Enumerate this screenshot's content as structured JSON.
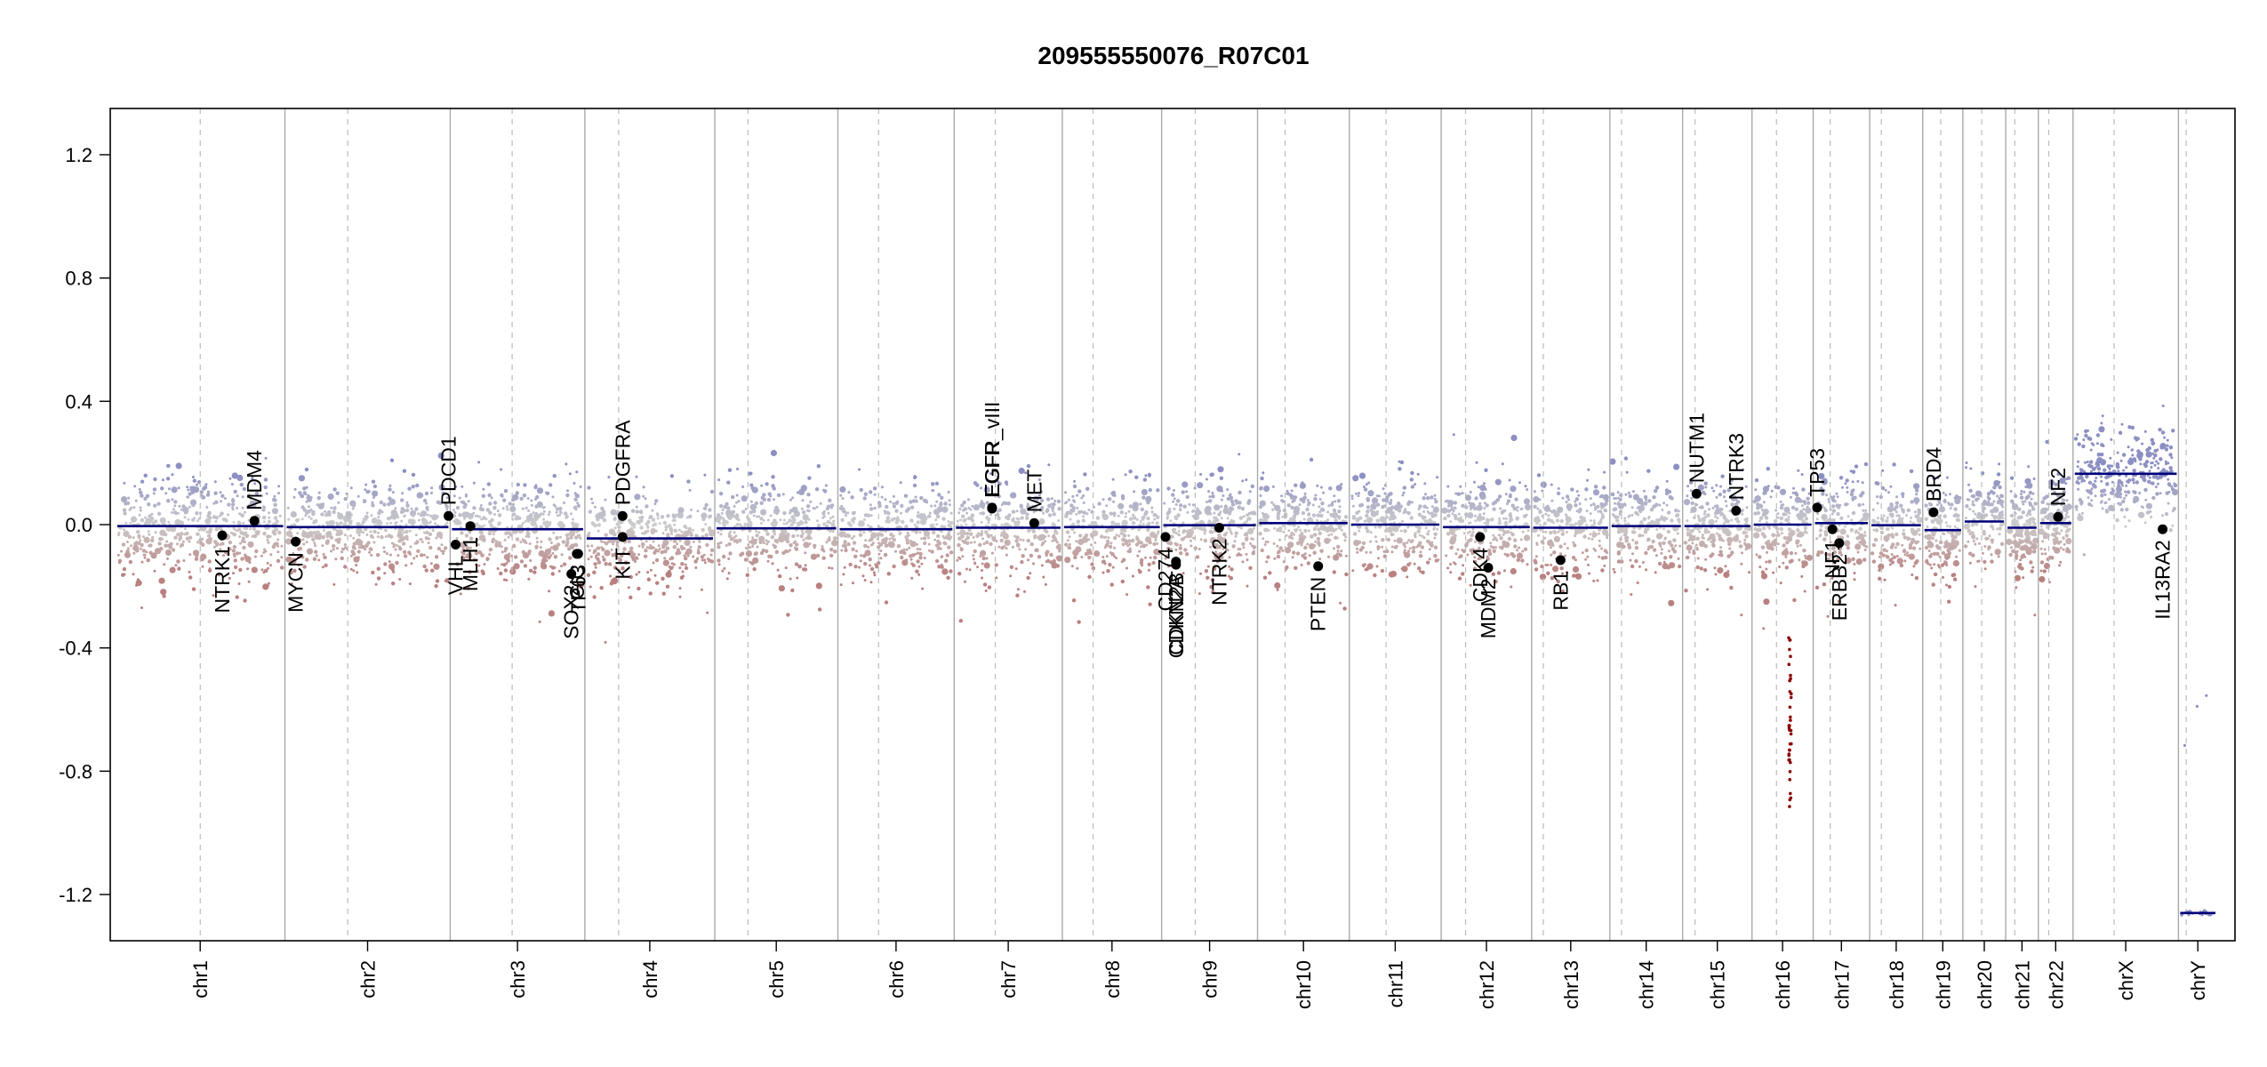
{
  "chart_data": {
    "type": "scatter",
    "title": "209555550076_R07C01",
    "xlabel": "",
    "ylabel": "",
    "ylim": [
      -1.35,
      1.35
    ],
    "yticks": [
      -1.2,
      -0.8,
      -0.4,
      0.0,
      0.4,
      0.8,
      1.2
    ],
    "ytick_labels": [
      "-1.2",
      "-0.8",
      "-0.4",
      "0.0",
      "0.4",
      "0.8",
      "1.2"
    ],
    "grid": false,
    "legend": "none",
    "colors": {
      "gain": "#8c8fc2",
      "neutral": "#c9c9c9",
      "loss": "#b98080",
      "segment": "#00007a",
      "gene_marker": "#000000",
      "chrom_boundary": "#aaaaaa",
      "centromere": "#bbbbbb",
      "deep_loss": "#8b0000"
    },
    "chromosomes": [
      {
        "name": "chr1",
        "length": 249,
        "centromere": 0.5,
        "segment": -0.005
      },
      {
        "name": "chr2",
        "length": 243,
        "centromere": 0.38,
        "segment": -0.008
      },
      {
        "name": "chr3",
        "length": 198,
        "centromere": 0.46,
        "segment": -0.015
      },
      {
        "name": "chr4",
        "length": 191,
        "centromere": 0.26,
        "segment": -0.045
      },
      {
        "name": "chr5",
        "length": 181,
        "centromere": 0.27,
        "segment": -0.012
      },
      {
        "name": "chr6",
        "length": 171,
        "centromere": 0.35,
        "segment": -0.015
      },
      {
        "name": "chr7",
        "length": 159,
        "centromere": 0.38,
        "segment": -0.01
      },
      {
        "name": "chr8",
        "length": 146,
        "centromere": 0.31,
        "segment": -0.008
      },
      {
        "name": "chr9",
        "length": 141,
        "centromere": 0.35,
        "segment": -0.002
      },
      {
        "name": "chr10",
        "length": 135,
        "centromere": 0.3,
        "segment": 0.005
      },
      {
        "name": "chr11",
        "length": 135,
        "centromere": 0.4,
        "segment": 0.0
      },
      {
        "name": "chr12",
        "length": 133,
        "centromere": 0.27,
        "segment": -0.008
      },
      {
        "name": "chr13",
        "length": 115,
        "centromere": 0.15,
        "segment": -0.01
      },
      {
        "name": "chr14",
        "length": 107,
        "centromere": 0.16,
        "segment": -0.005
      },
      {
        "name": "chr15",
        "length": 102,
        "centromere": 0.18,
        "segment": -0.005
      },
      {
        "name": "chr16",
        "length": 90,
        "centromere": 0.4,
        "segment": 0.0
      },
      {
        "name": "chr17",
        "length": 83,
        "centromere": 0.3,
        "segment": 0.005
      },
      {
        "name": "chr18",
        "length": 78,
        "centromere": 0.22,
        "segment": -0.002
      },
      {
        "name": "chr19",
        "length": 59,
        "centromere": 0.45,
        "segment": -0.018
      },
      {
        "name": "chr20",
        "length": 63,
        "centromere": 0.44,
        "segment": 0.01
      },
      {
        "name": "chr21",
        "length": 48,
        "centromere": 0.28,
        "segment": -0.01
      },
      {
        "name": "chr22",
        "length": 51,
        "centromere": 0.3,
        "segment": 0.005
      },
      {
        "name": "chrX",
        "length": 155,
        "centromere": 0.39,
        "segment": 0.165
      },
      {
        "name": "chrY",
        "length": 57,
        "centromere": 0.2,
        "segment": -1.26
      }
    ],
    "genes": [
      {
        "name": "NTRK1",
        "chrom": "chr1",
        "pos": 0.63,
        "value": -0.035,
        "label_side": "below"
      },
      {
        "name": "MDM4",
        "chrom": "chr1",
        "pos": 0.82,
        "value": 0.012,
        "label_side": "above"
      },
      {
        "name": "MYCN",
        "chrom": "chr2",
        "pos": 0.065,
        "value": -0.055,
        "label_side": "below"
      },
      {
        "name": "PDCD1",
        "chrom": "chr2",
        "pos": 0.99,
        "value": 0.028,
        "label_side": "above"
      },
      {
        "name": "VHL",
        "chrom": "chr3",
        "pos": 0.04,
        "value": -0.065,
        "label_side": "below"
      },
      {
        "name": "MLH1",
        "chrom": "chr3",
        "pos": 0.15,
        "value": -0.005,
        "label_side": "below"
      },
      {
        "name": "SOX2",
        "chrom": "chr3",
        "pos": 0.9,
        "value": -0.16,
        "label_side": "below"
      },
      {
        "name": "CIC",
        "chrom": "chr3",
        "pos": 0.94,
        "value": -0.095,
        "label_side": "below"
      },
      {
        "name": "TP63",
        "chrom": "chr3",
        "pos": 0.95,
        "value": -0.095,
        "label_side": "below"
      },
      {
        "name": "PDGFRA",
        "chrom": "chr4",
        "pos": 0.29,
        "value": 0.028,
        "label_side": "above"
      },
      {
        "name": "KIT",
        "chrom": "chr4",
        "pos": 0.29,
        "value": -0.04,
        "label_side": "below"
      },
      {
        "name": "EGFR_vIII",
        "chrom": "chr7",
        "pos": 0.35,
        "value": 0.055,
        "label_side": "above"
      },
      {
        "name": "EGFR",
        "chrom": "chr7",
        "pos": 0.35,
        "value": 0.052,
        "label_side": "above"
      },
      {
        "name": "MET",
        "chrom": "chr7",
        "pos": 0.74,
        "value": 0.005,
        "label_side": "above"
      },
      {
        "name": "CD274",
        "chrom": "chr9",
        "pos": 0.04,
        "value": -0.04,
        "label_side": "below"
      },
      {
        "name": "CDKN2A",
        "chrom": "chr9",
        "pos": 0.15,
        "value": -0.13,
        "label_side": "below"
      },
      {
        "name": "CDKN2B",
        "chrom": "chr9",
        "pos": 0.15,
        "value": -0.12,
        "label_side": "below"
      },
      {
        "name": "NTRK2",
        "chrom": "chr9",
        "pos": 0.6,
        "value": -0.01,
        "label_side": "below"
      },
      {
        "name": "PTEN",
        "chrom": "chr10",
        "pos": 0.66,
        "value": -0.135,
        "label_side": "below"
      },
      {
        "name": "CDK4",
        "chrom": "chr12",
        "pos": 0.43,
        "value": -0.04,
        "label_side": "below"
      },
      {
        "name": "MDM2",
        "chrom": "chr12",
        "pos": 0.52,
        "value": -0.14,
        "label_side": "below"
      },
      {
        "name": "RB1",
        "chrom": "chr13",
        "pos": 0.37,
        "value": -0.115,
        "label_side": "below"
      },
      {
        "name": "NUTM1",
        "chrom": "chr15",
        "pos": 0.2,
        "value": 0.1,
        "label_side": "above"
      },
      {
        "name": "NTRK3",
        "chrom": "chr15",
        "pos": 0.77,
        "value": 0.045,
        "label_side": "above"
      },
      {
        "name": "TP53",
        "chrom": "chr17",
        "pos": 0.07,
        "value": 0.055,
        "label_side": "above"
      },
      {
        "name": "NF1",
        "chrom": "chr17",
        "pos": 0.34,
        "value": -0.015,
        "label_side": "below"
      },
      {
        "name": "ERBB2",
        "chrom": "chr17",
        "pos": 0.46,
        "value": -0.06,
        "label_side": "below"
      },
      {
        "name": "BRD4",
        "chrom": "chr19",
        "pos": 0.27,
        "value": 0.04,
        "label_side": "above"
      },
      {
        "name": "NF2",
        "chrom": "chr22",
        "pos": 0.57,
        "value": 0.025,
        "label_side": "above"
      },
      {
        "name": "IL13RA2",
        "chrom": "chrX",
        "pos": 0.85,
        "value": -0.015,
        "label_side": "below"
      }
    ]
  }
}
